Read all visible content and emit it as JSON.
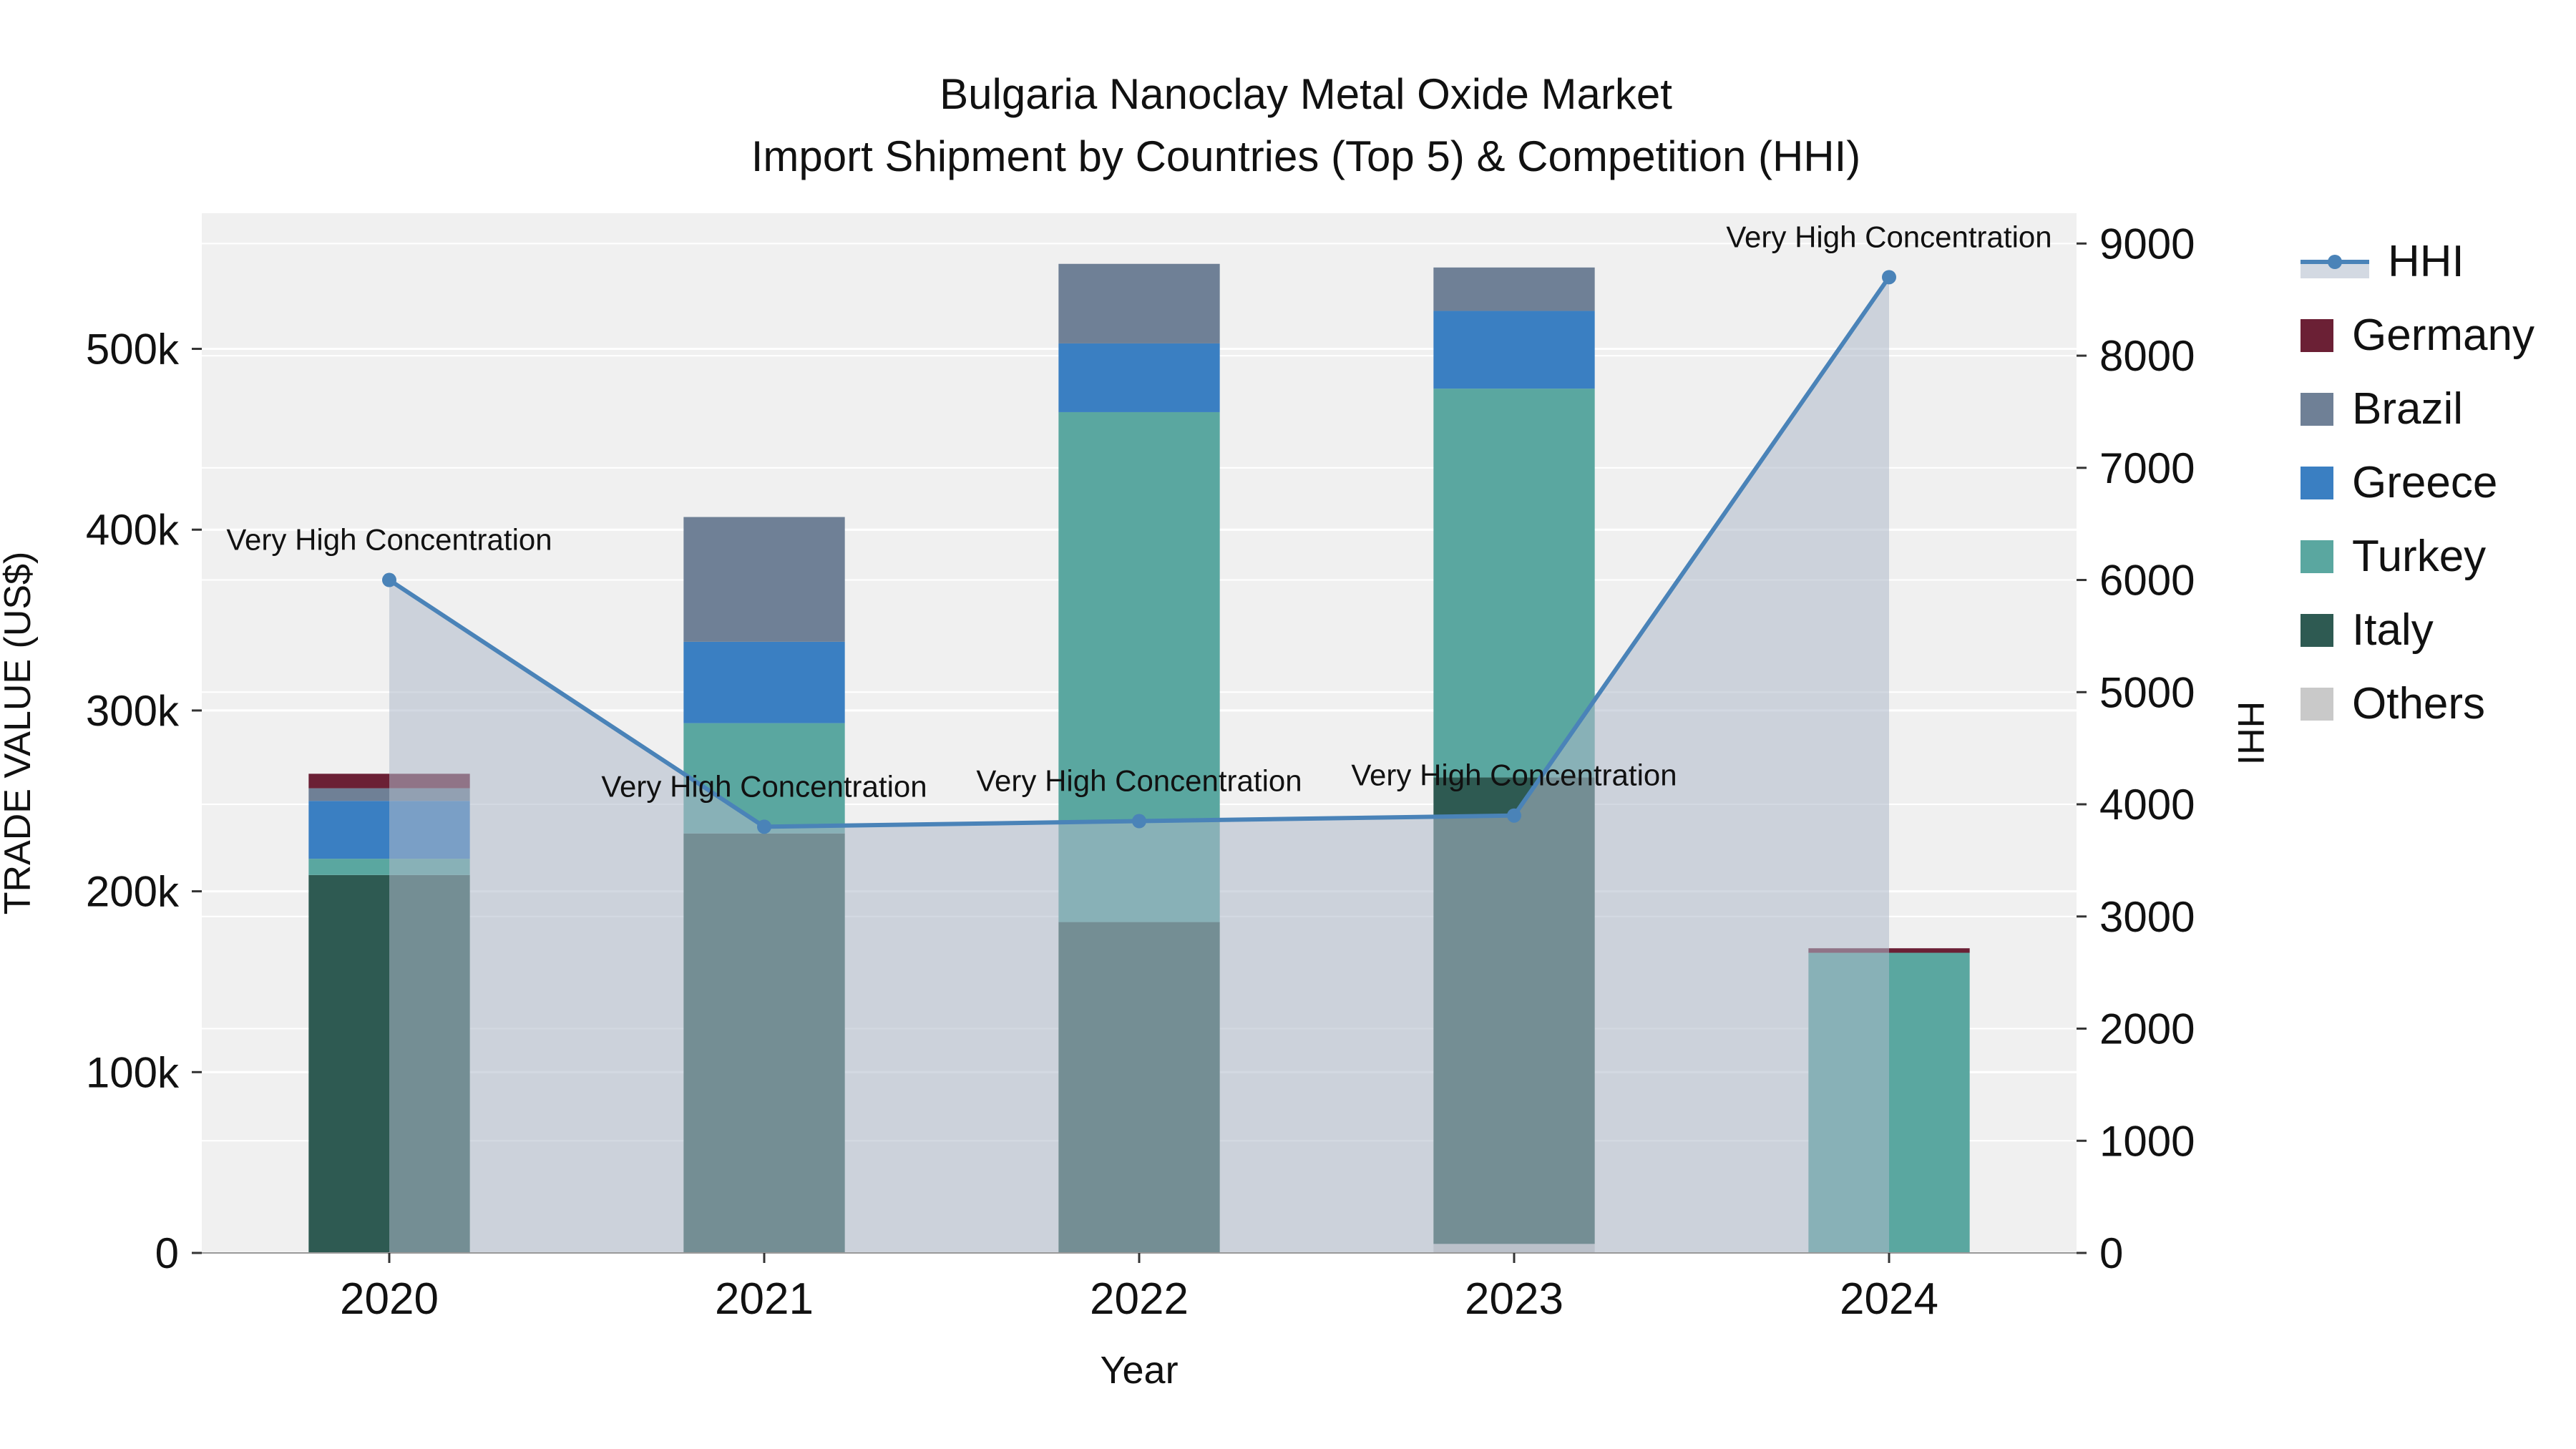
{
  "title_line1": "Bulgaria Nanoclay Metal Oxide Market",
  "title_line2": "Import Shipment by Countries (Top 5) & Competition (HHI)",
  "axes": {
    "xlabel": "Year",
    "ylabel_left": "TRADE VALUE (US$)",
    "ylabel_right": "HHI",
    "yticks_left_labels": [
      "0",
      "100k",
      "200k",
      "300k",
      "400k",
      "500k"
    ],
    "yticks_left_values": [
      0,
      100000,
      200000,
      300000,
      400000,
      500000
    ],
    "yticks_right_values": [
      0,
      1000,
      2000,
      3000,
      4000,
      5000,
      6000,
      7000,
      8000,
      9000
    ],
    "ylim_left": [
      0,
      575000
    ],
    "ylim_right": [
      0,
      9270
    ]
  },
  "chart_data": {
    "type": "bar+line",
    "categories": [
      "2020",
      "2021",
      "2022",
      "2023",
      "2024"
    ],
    "bar_mode": "stacked",
    "bar_stack_order_bottom_to_top": [
      "Others",
      "Italy",
      "Turkey",
      "Greece",
      "Brazil",
      "Germany"
    ],
    "bar_series": [
      {
        "name": "Others",
        "color": "#c9c9c9",
        "values": [
          0,
          0,
          0,
          5000,
          0
        ]
      },
      {
        "name": "Italy",
        "color": "#2e5a52",
        "values": [
          209000,
          232000,
          183000,
          258000,
          0
        ]
      },
      {
        "name": "Turkey",
        "color": "#5aa7a0",
        "values": [
          9000,
          61000,
          282000,
          215000,
          166000
        ]
      },
      {
        "name": "Greece",
        "color": "#3a7fc2",
        "values": [
          32000,
          45000,
          38000,
          43000,
          0
        ]
      },
      {
        "name": "Brazil",
        "color": "#6f8096",
        "values": [
          7000,
          69000,
          44000,
          24000,
          0
        ]
      },
      {
        "name": "Germany",
        "color": "#6b2035",
        "values": [
          8000,
          0,
          0,
          0,
          2500
        ]
      }
    ],
    "line_series": {
      "name": "HHI",
      "color": "#4a83b8",
      "area_fill": "#aeb9ca",
      "values": [
        6000,
        3800,
        3850,
        3900,
        8700
      ],
      "annotations": [
        "Very High Concentration",
        "Very High Concentration",
        "Very High Concentration",
        "Very High Concentration",
        "Very High Concentration"
      ]
    }
  },
  "legend": {
    "items": [
      {
        "label": "HHI",
        "color": "#4a83b8",
        "type": "line"
      },
      {
        "label": "Germany",
        "color": "#6b2035",
        "type": "box"
      },
      {
        "label": "Brazil",
        "color": "#6f8096",
        "type": "box"
      },
      {
        "label": "Greece",
        "color": "#3a7fc2",
        "type": "box"
      },
      {
        "label": "Turkey",
        "color": "#5aa7a0",
        "type": "box"
      },
      {
        "label": "Italy",
        "color": "#2e5a52",
        "type": "box"
      },
      {
        "label": "Others",
        "color": "#c9c9c9",
        "type": "box"
      }
    ]
  },
  "colors": {
    "plot_bg": "#f0f0f0",
    "grid": "#ffffff",
    "tick": "#333333",
    "text": "#111111"
  }
}
